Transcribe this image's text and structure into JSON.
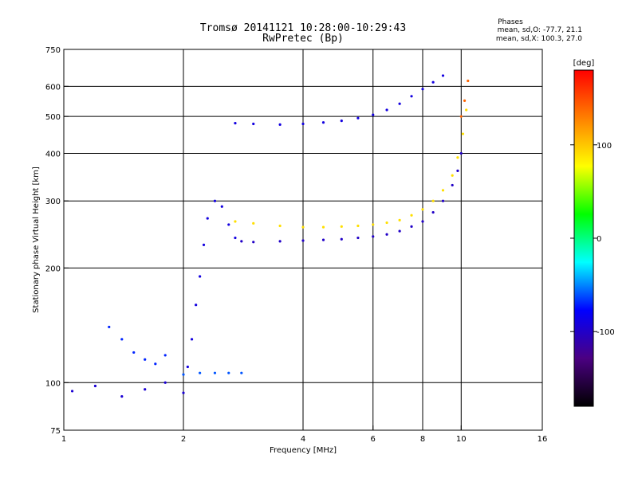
{
  "chart_data": {
    "type": "scatter",
    "title": "Tromsø 20141121 10:28:00-10:29:43",
    "subtitle": "RwPretec (Bp)",
    "stats_header": "Phases",
    "stats_o": "mean, sd,O: -77.7, 21.1",
    "stats_x": "mean, sd,X: 100.3, 27.0",
    "xlabel": "Frequency [MHz]",
    "ylabel": "Stationary phase Virtual Height [km]",
    "xscale": "log",
    "yscale": "log",
    "xlim": [
      1,
      16
    ],
    "ylim": [
      75,
      750
    ],
    "xticks": [
      1,
      2,
      4,
      6,
      8,
      10,
      16
    ],
    "xtick_labels": [
      "1",
      "2",
      "4",
      "6",
      "8",
      "10",
      "16"
    ],
    "xgrid": [
      2,
      4,
      6,
      8,
      10
    ],
    "yticks": [
      75,
      100,
      200,
      300,
      400,
      500,
      600,
      750
    ],
    "ytick_labels": [
      "75",
      "100",
      "200",
      "300",
      "400",
      "500",
      "600",
      "750"
    ],
    "ygrid": [
      100,
      200,
      300,
      400,
      500,
      600
    ],
    "grid": true,
    "colorbar": {
      "label": "[deg]",
      "range": [
        -180,
        180
      ],
      "ticks": [
        100,
        0,
        -100
      ],
      "tick_labels": [
        "100",
        "0",
        "-100"
      ],
      "colors": [
        "#000000",
        "#4b0082",
        "#0000ff",
        "#00ffff",
        "#00ff00",
        "#ffff00",
        "#ff8000",
        "#ff0000"
      ]
    },
    "series": [
      {
        "x": [
          2.05,
          2.1,
          2.15,
          2.2,
          2.25,
          2.3,
          2.4,
          2.5,
          2.6,
          2.7
        ],
        "y": [
          110,
          130,
          160,
          190,
          230,
          270,
          300,
          290,
          260,
          240
        ],
        "phase": -90
      },
      {
        "x": [
          2.8,
          3.0,
          3.5,
          4.0,
          4.5,
          5.0,
          5.5,
          6.0,
          6.5,
          7.0,
          7.5,
          8.0,
          8.5,
          9.0,
          9.5,
          9.8,
          10.0
        ],
        "y": [
          235,
          234,
          235,
          236,
          237,
          238,
          240,
          242,
          245,
          250,
          257,
          265,
          280,
          300,
          330,
          360,
          400
        ],
        "phase": -100
      },
      {
        "x": [
          2.7,
          3.0,
          3.5,
          4.0,
          4.5,
          5.0,
          5.5,
          6.0,
          6.5,
          7.0,
          7.5,
          8.0,
          8.5,
          9.0,
          9.5,
          9.8,
          10.1,
          10.3
        ],
        "y": [
          265,
          262,
          258,
          256,
          256,
          257,
          258,
          260,
          263,
          267,
          275,
          285,
          300,
          320,
          350,
          390,
          450,
          520
        ],
        "phase": 90
      },
      {
        "x": [
          2.7,
          3.0,
          3.5,
          4.0,
          4.5,
          5.0,
          5.5,
          6.0,
          6.5,
          7.0,
          7.5,
          8.0,
          8.5,
          9.0
        ],
        "y": [
          480,
          478,
          476,
          478,
          482,
          487,
          495,
          505,
          520,
          540,
          565,
          590,
          615,
          640
        ],
        "phase": -90
      },
      {
        "x": [
          2.0,
          2.2,
          2.4,
          2.6,
          2.8
        ],
        "y": [
          105,
          106,
          106,
          106,
          106
        ],
        "phase": -60
      },
      {
        "x": [
          1.05,
          1.2,
          1.4,
          1.6,
          1.8,
          2.0
        ],
        "y": [
          95,
          98,
          92,
          96,
          100,
          94
        ],
        "phase": -95
      },
      {
        "x": [
          1.3,
          1.4,
          1.5,
          1.6,
          1.7,
          1.8
        ],
        "y": [
          140,
          130,
          120,
          115,
          112,
          118
        ],
        "phase": -70
      },
      {
        "x": [
          10.0,
          10.2,
          10.4
        ],
        "y": [
          500,
          550,
          620
        ],
        "phase": 140
      }
    ]
  }
}
